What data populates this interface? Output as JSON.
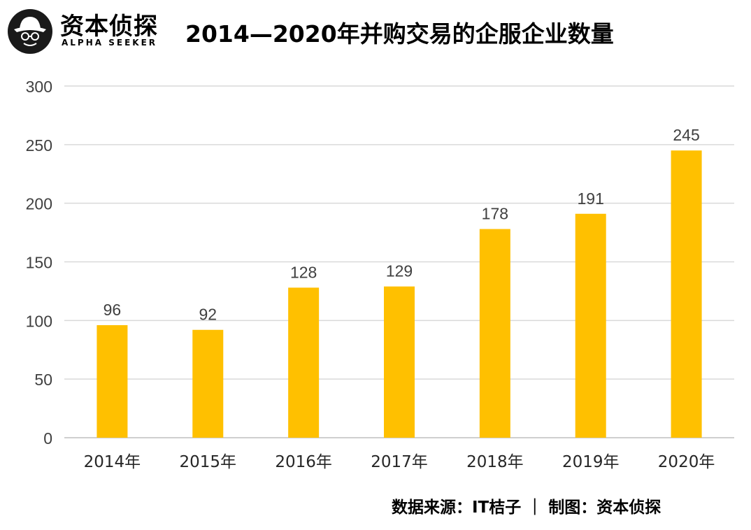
{
  "brand": {
    "name": "资本侦探",
    "subtitle": "ALPHA SEEKER",
    "logo_icon": "detective-hat-icon"
  },
  "footer": {
    "source": "数据来源：IT桔子 ｜ 制图：资本侦探"
  },
  "chart_data": {
    "type": "bar",
    "title": "2014—2020年并购交易的企服企业数量",
    "xlabel": "",
    "ylabel": "",
    "categories": [
      "2014年",
      "2015年",
      "2016年",
      "2017年",
      "2018年",
      "2019年",
      "2020年"
    ],
    "values": [
      96,
      92,
      128,
      129,
      178,
      191,
      245
    ],
    "ylim": [
      0,
      300
    ],
    "yticks": [
      0,
      50,
      100,
      150,
      200,
      250,
      300
    ],
    "grid": true,
    "legend": "none",
    "colors": {
      "bar": "#FFC000",
      "grid": "#d9d9d9",
      "axis": "#bfbfbf",
      "text": "#404040"
    }
  }
}
